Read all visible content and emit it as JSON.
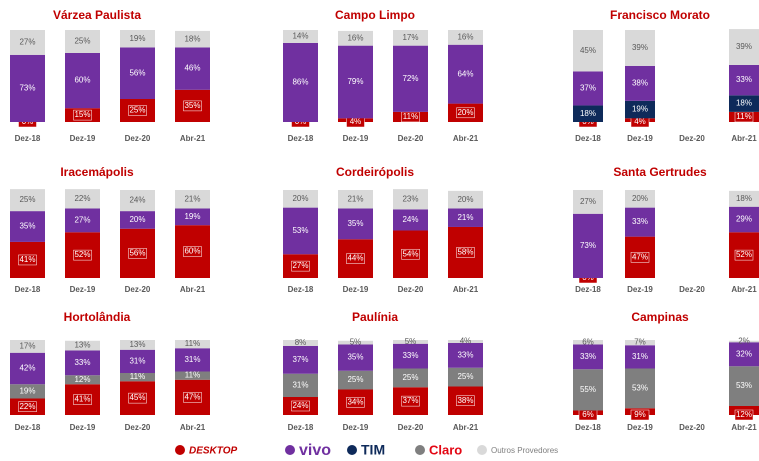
{
  "chart_data": [
    {
      "type": "bar",
      "stacked": true,
      "title": "Várzea Paulista",
      "categories": [
        "Dez-18",
        "Dez-19",
        "Dez-20",
        "Abr-21"
      ],
      "series": [
        {
          "name": "DESKTOP",
          "color": "#c00000",
          "values": [
            0,
            15,
            25,
            35
          ],
          "value_labels": [
            "0%",
            "15%",
            "25%",
            "35%"
          ]
        },
        {
          "name": "vivo",
          "color": "#7030a0",
          "values": [
            73,
            60,
            56,
            46
          ],
          "value_labels": [
            "73%",
            "60%",
            "56%",
            "46%"
          ]
        },
        {
          "name": "Outros Provedores",
          "color": "#d9d9d9",
          "values": [
            27,
            25,
            19,
            18
          ],
          "value_labels": [
            "27%",
            "25%",
            "19%",
            "18%"
          ]
        }
      ]
    },
    {
      "type": "bar",
      "stacked": true,
      "title": "Campo Limpo",
      "categories": [
        "Dez-18",
        "Dez-19",
        "Dez-20",
        "Abr-21"
      ],
      "series": [
        {
          "name": "DESKTOP",
          "color": "#c00000",
          "values": [
            0,
            4,
            11,
            20
          ],
          "value_labels": [
            "0%",
            "4%",
            "11%",
            "20%"
          ]
        },
        {
          "name": "vivo",
          "color": "#7030a0",
          "values": [
            86,
            79,
            72,
            64
          ],
          "value_labels": [
            "86%",
            "79%",
            "72%",
            "64%"
          ]
        },
        {
          "name": "Outros Provedores",
          "color": "#d9d9d9",
          "values": [
            14,
            16,
            17,
            16
          ],
          "value_labels": [
            "14%",
            "16%",
            "17%",
            "16%"
          ]
        }
      ]
    },
    {
      "type": "bar",
      "stacked": true,
      "title": "Francisco Morato",
      "categories": [
        "Dez-18",
        "Dez-19",
        "Dez-20",
        "Abr-21"
      ],
      "series": [
        {
          "name": "DESKTOP",
          "color": "#c00000",
          "values": [
            0,
            4,
            null,
            11
          ],
          "value_labels": [
            "0%",
            "4%",
            null,
            "11%"
          ]
        },
        {
          "name": "TIM",
          "color": "#0e2a5a",
          "values": [
            18,
            19,
            null,
            18
          ],
          "value_labels": [
            "18%",
            "19%",
            null,
            "18%"
          ]
        },
        {
          "name": "vivo",
          "color": "#7030a0",
          "values": [
            37,
            38,
            null,
            33
          ],
          "value_labels": [
            "37%",
            "38%",
            null,
            "33%"
          ]
        },
        {
          "name": "Outros Provedores",
          "color": "#d9d9d9",
          "values": [
            45,
            39,
            null,
            39
          ],
          "value_labels": [
            "45%",
            "39%",
            null,
            "39%"
          ]
        }
      ]
    },
    {
      "type": "bar",
      "stacked": true,
      "title": "Iracemápolis",
      "categories": [
        "Dez-18",
        "Dez-19",
        "Dez-20",
        "Abr-21"
      ],
      "series": [
        {
          "name": "DESKTOP",
          "color": "#c00000",
          "values": [
            41,
            52,
            56,
            60
          ],
          "value_labels": [
            "41%",
            "52%",
            "56%",
            "60%"
          ]
        },
        {
          "name": "vivo",
          "color": "#7030a0",
          "values": [
            35,
            27,
            20,
            19
          ],
          "value_labels": [
            "35%",
            "27%",
            "20%",
            "19%"
          ]
        },
        {
          "name": "Outros Provedores",
          "color": "#d9d9d9",
          "values": [
            25,
            22,
            24,
            21
          ],
          "value_labels": [
            "25%",
            "22%",
            "24%",
            "21%"
          ]
        }
      ]
    },
    {
      "type": "bar",
      "stacked": true,
      "title": "Cordeirópolis",
      "categories": [
        "Dez-18",
        "Dez-19",
        "Dez-20",
        "Abr-21"
      ],
      "series": [
        {
          "name": "DESKTOP",
          "color": "#c00000",
          "values": [
            27,
            44,
            54,
            58
          ],
          "value_labels": [
            "27%",
            "44%",
            "54%",
            "58%"
          ]
        },
        {
          "name": "vivo",
          "color": "#7030a0",
          "values": [
            53,
            35,
            24,
            21
          ],
          "value_labels": [
            "53%",
            "35%",
            "24%",
            "21%"
          ]
        },
        {
          "name": "Outros Provedores",
          "color": "#d9d9d9",
          "values": [
            20,
            21,
            23,
            20
          ],
          "value_labels": [
            "20%",
            "21%",
            "23%",
            "20%"
          ]
        }
      ]
    },
    {
      "type": "bar",
      "stacked": true,
      "title": "Santa Gertrudes",
      "categories": [
        "Dez-18",
        "Dez-19",
        "Dez-20",
        "Abr-21"
      ],
      "series": [
        {
          "name": "DESKTOP",
          "color": "#c00000",
          "values": [
            0,
            47,
            null,
            52
          ],
          "value_labels": [
            "0%",
            "47%",
            null,
            "52%"
          ]
        },
        {
          "name": "vivo",
          "color": "#7030a0",
          "values": [
            73,
            33,
            null,
            29
          ],
          "value_labels": [
            "73%",
            "33%",
            null,
            "29%"
          ]
        },
        {
          "name": "Outros Provedores",
          "color": "#d9d9d9",
          "values": [
            27,
            20,
            null,
            18
          ],
          "value_labels": [
            "27%",
            "20%",
            null,
            "18%"
          ]
        }
      ]
    },
    {
      "type": "bar",
      "stacked": true,
      "title": "Hortolândia",
      "categories": [
        "Dez-18",
        "Dez-19",
        "Dez-20",
        "Abr-21"
      ],
      "series": [
        {
          "name": "DESKTOP",
          "color": "#c00000",
          "values": [
            22,
            41,
            45,
            47
          ],
          "value_labels": [
            "22%",
            "41%",
            "45%",
            "47%"
          ]
        },
        {
          "name": "Claro",
          "color": "#7f7f7f",
          "values": [
            19,
            12,
            11,
            11
          ],
          "value_labels": [
            "19%",
            "12%",
            "11%",
            "11%"
          ]
        },
        {
          "name": "vivo",
          "color": "#7030a0",
          "values": [
            42,
            33,
            31,
            31
          ],
          "value_labels": [
            "42%",
            "33%",
            "31%",
            "31%"
          ]
        },
        {
          "name": "Outros Provedores",
          "color": "#d9d9d9",
          "values": [
            17,
            13,
            13,
            11
          ],
          "value_labels": [
            "17%",
            "13%",
            "13%",
            "11%"
          ]
        }
      ]
    },
    {
      "type": "bar",
      "stacked": true,
      "title": "Paulínia",
      "categories": [
        "Dez-18",
        "Dez-19",
        "Dez-20",
        "Abr-21"
      ],
      "series": [
        {
          "name": "DESKTOP",
          "color": "#c00000",
          "values": [
            24,
            34,
            37,
            38
          ],
          "value_labels": [
            "24%",
            "34%",
            "37%",
            "38%"
          ]
        },
        {
          "name": "Claro",
          "color": "#7f7f7f",
          "values": [
            31,
            25,
            25,
            25
          ],
          "value_labels": [
            "31%",
            "25%",
            "25%",
            "25%"
          ]
        },
        {
          "name": "vivo",
          "color": "#7030a0",
          "values": [
            37,
            35,
            33,
            33
          ],
          "value_labels": [
            "37%",
            "35%",
            "33%",
            "33%"
          ]
        },
        {
          "name": "Outros Provedores",
          "color": "#d9d9d9",
          "values": [
            8,
            5,
            5,
            4
          ],
          "value_labels": [
            "8%",
            "5%",
            "5%",
            "4%"
          ]
        }
      ]
    },
    {
      "type": "bar",
      "stacked": true,
      "title": "Campinas",
      "categories": [
        "Dez-18",
        "Dez-19",
        "Dez-20",
        "Abr-21"
      ],
      "series": [
        {
          "name": "DESKTOP",
          "color": "#c00000",
          "values": [
            6,
            9,
            null,
            12
          ],
          "value_labels": [
            "6%",
            "9%",
            null,
            "12%"
          ]
        },
        {
          "name": "Claro",
          "color": "#7f7f7f",
          "values": [
            55,
            53,
            null,
            53
          ],
          "value_labels": [
            "55%",
            "53%",
            null,
            "53%"
          ]
        },
        {
          "name": "vivo",
          "color": "#7030a0",
          "values": [
            33,
            31,
            null,
            32
          ],
          "value_labels": [
            "33%",
            "31%",
            null,
            "32%"
          ]
        },
        {
          "name": "Outros Provedores",
          "color": "#d9d9d9",
          "values": [
            6,
            7,
            null,
            2
          ],
          "value_labels": [
            "6%",
            "7%",
            null,
            "2%"
          ]
        }
      ]
    }
  ],
  "legend": [
    {
      "name": "DESKTOP",
      "color": "#c00000"
    },
    {
      "name": "vivo",
      "color": "#7030a0"
    },
    {
      "name": "TIM",
      "color": "#0e2a5a"
    },
    {
      "name": "Claro",
      "color": "#7f7f7f"
    },
    {
      "name": "Outros Provedores",
      "color": "#d9d9d9"
    }
  ]
}
